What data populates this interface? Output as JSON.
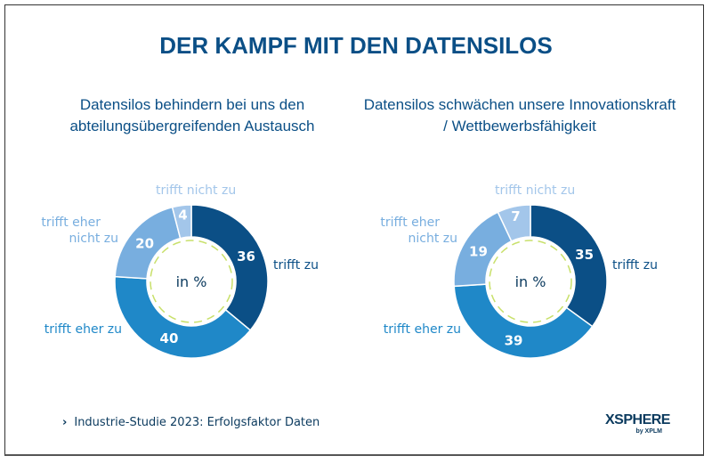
{
  "title": "DER KAMPF MIT DEN DATENSILOS",
  "footer": {
    "chevron": "›",
    "text": "Industrie-Studie 2023: Erfolgsfaktor Daten"
  },
  "logo": {
    "name": "XSPHERE",
    "sub": "by XPLM"
  },
  "colors": {
    "trifft zu": "#0b4f86",
    "trifft eher zu": "#1f88c8",
    "trifft eher nicht zu": "#78aedf",
    "trifft nicht zu": "#a3c6ea",
    "dash": "#c8e06a"
  },
  "chart_data": [
    {
      "type": "pie",
      "title": "Datensilos behindern bei uns den abteilungsübergreifenden Austausch",
      "center_label": "in %",
      "categories": [
        "trifft zu",
        "trifft eher zu",
        "trifft eher nicht zu",
        "trifft nicht zu"
      ],
      "values": [
        36,
        40,
        20,
        4
      ]
    },
    {
      "type": "pie",
      "title": "Datensilos schwächen unsere Innovationskraft / Wettbewerbsfähigkeit",
      "center_label": "in %",
      "categories": [
        "trifft zu",
        "trifft eher zu",
        "trifft eher nicht zu",
        "trifft nicht zu"
      ],
      "values": [
        35,
        39,
        19,
        7
      ]
    }
  ]
}
